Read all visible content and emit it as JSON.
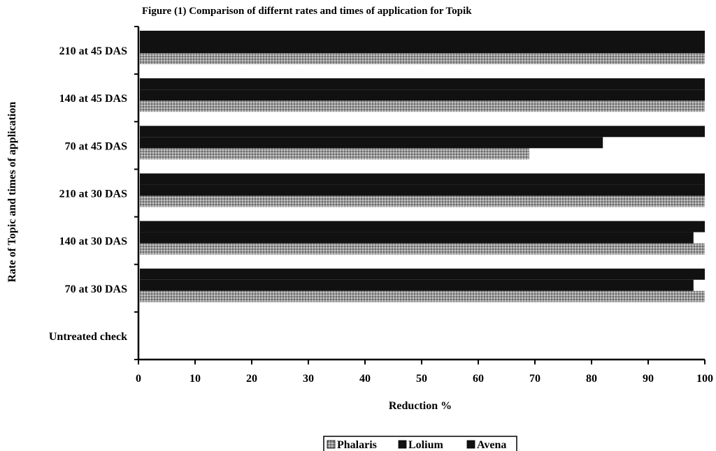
{
  "chart_data": {
    "type": "bar",
    "orientation": "horizontal",
    "title": "Figure (1) Comparison of differnt rates and times of application  for Topik",
    "xlabel": "Reduction %",
    "ylabel": "Rate of  Topic and times of application",
    "categories": [
      "Untreated check",
      "70 at 30 DAS",
      "140 at 30 DAS",
      "210 at 30 DAS",
      "70 at 45 DAS",
      "140 at 45 DAS",
      "210 at 45 DAS"
    ],
    "series": [
      {
        "name": "Phalaris",
        "values": [
          0,
          100,
          100,
          100,
          69,
          100,
          100
        ]
      },
      {
        "name": "Lolium",
        "values": [
          0,
          98,
          98,
          100,
          82,
          100,
          100
        ]
      },
      {
        "name": "Avena",
        "values": [
          0,
          100,
          100,
          100,
          100,
          100,
          100
        ]
      }
    ],
    "xlim": [
      0,
      100
    ],
    "xticks": [
      0,
      10,
      20,
      30,
      40,
      50,
      60,
      70,
      80,
      90,
      100
    ],
    "grid": false,
    "legend_position": "bottom",
    "colors": {
      "Phalaris": "#8c8c8c",
      "Lolium": "#111111",
      "Avena": "#111111"
    }
  }
}
